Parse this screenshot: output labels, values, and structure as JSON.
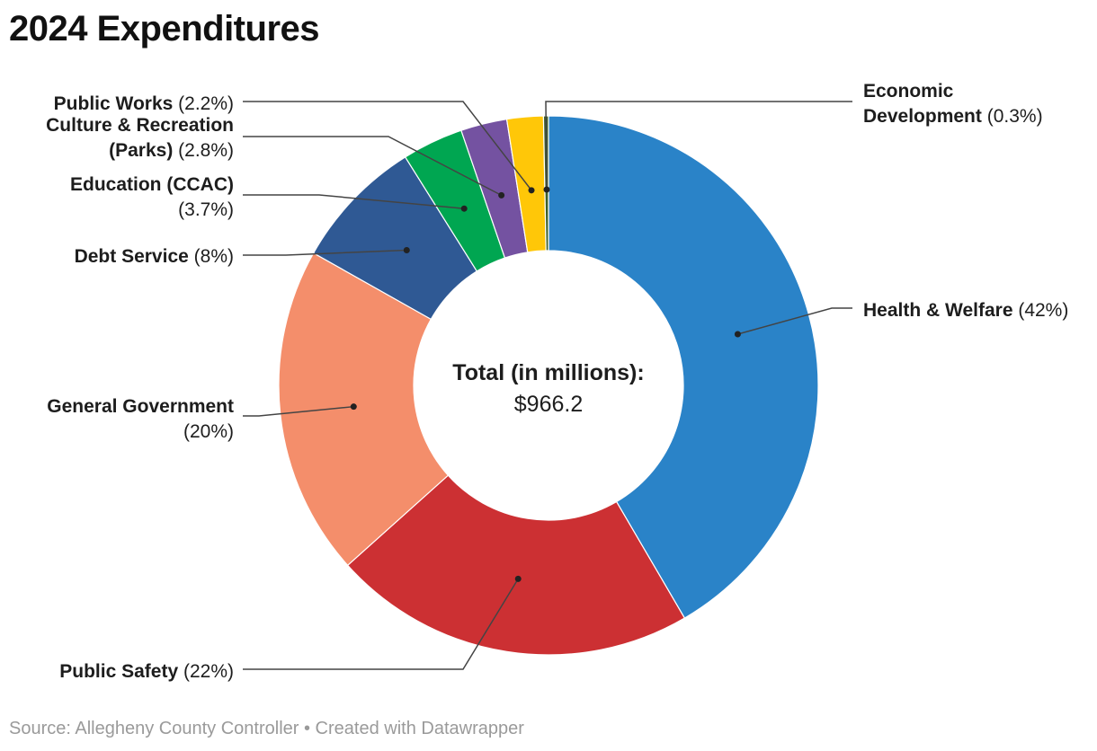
{
  "header": {
    "title": "2024 Expenditures"
  },
  "center": {
    "label": "Total (in millions):",
    "value": "$966.2"
  },
  "footer": {
    "source_label": "Source: ",
    "source": "Allegheny County Controller",
    "separator": " • ",
    "created_with": "Created with Datawrapper"
  },
  "chart_data": {
    "type": "pie",
    "donut": true,
    "title": "2024 Expenditures",
    "total_label": "Total (in millions):",
    "total_value": 966.2,
    "slices": [
      {
        "name": "Health & Welfare",
        "label_lines": [
          "Health & Welfare"
        ],
        "pct_text": "(42%)",
        "value": 42,
        "color": "#2a83c8",
        "label_side": "right"
      },
      {
        "name": "Public Safety",
        "label_lines": [
          "Public Safety"
        ],
        "pct_text": "(22%)",
        "value": 22,
        "color": "#cc3033",
        "label_side": "left"
      },
      {
        "name": "General Government",
        "label_lines": [
          "General Government"
        ],
        "pct_text": "(20%)",
        "value": 20,
        "color": "#f48e6b",
        "label_side": "left"
      },
      {
        "name": "Debt Service",
        "label_lines": [
          "Debt Service"
        ],
        "pct_text": "(8%)",
        "value": 8,
        "color": "#2f5994",
        "label_side": "left"
      },
      {
        "name": "Education (CCAC)",
        "label_lines": [
          "Education (CCAC)"
        ],
        "pct_text": "(3.7%)",
        "value": 3.7,
        "color": "#00a651",
        "label_side": "left"
      },
      {
        "name": "Culture & Recreation (Parks)",
        "label_lines": [
          "Culture & Recreation",
          "(Parks)"
        ],
        "pct_text": "(2.8%)",
        "value": 2.8,
        "color": "#7452a1",
        "label_side": "left"
      },
      {
        "name": "Public Works",
        "label_lines": [
          "Public Works"
        ],
        "pct_text": "(2.2%)",
        "value": 2.2,
        "color": "#ffc708",
        "label_side": "left"
      },
      {
        "name": "Economic Development",
        "label_lines": [
          "Economic",
          "Development"
        ],
        "pct_text": "(0.3%)",
        "value": 0.3,
        "color": "#3a5f2a",
        "label_side": "right"
      }
    ]
  }
}
